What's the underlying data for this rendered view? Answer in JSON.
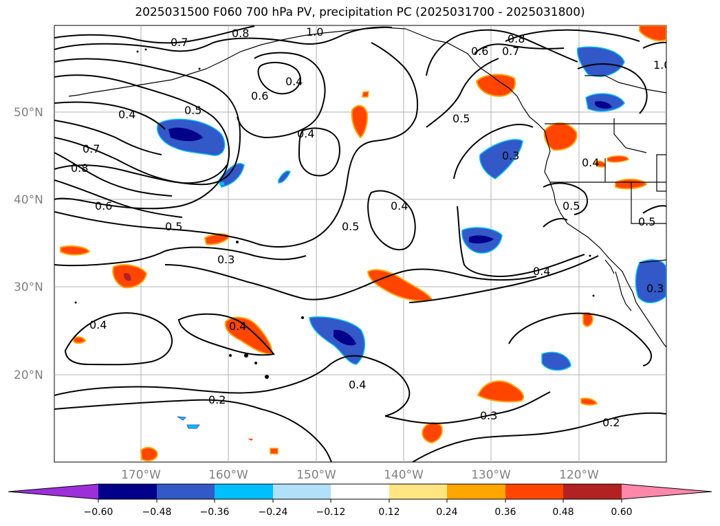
{
  "title": "2025031500 F060 700 hPa PV, precipitation PC (2025031700 - 2025031800)",
  "map": {
    "lat_labels": [
      "50°N",
      "40°N",
      "30°N",
      "20°N"
    ],
    "lon_labels": [
      "170°W",
      "160°W",
      "150°W",
      "140°W",
      "130°W",
      "120°W"
    ],
    "contour_labels": [
      "0.8",
      "0.7",
      "0.6",
      "0.5",
      "0.4",
      "0.3",
      "0.2",
      "1.0"
    ]
  },
  "colorbar": {
    "ticks": [
      "−0.60",
      "−0.48",
      "−0.36",
      "−0.24",
      "−0.12",
      "0.12",
      "0.24",
      "0.36",
      "0.48",
      "0.60"
    ],
    "colors": [
      "#9b30d9",
      "#00008b",
      "#3358c8",
      "#00bfff",
      "#b0e0fa",
      "#ffffff",
      "#ffe680",
      "#ffa500",
      "#ff4500",
      "#b22222",
      "#ff88aa"
    ]
  }
}
